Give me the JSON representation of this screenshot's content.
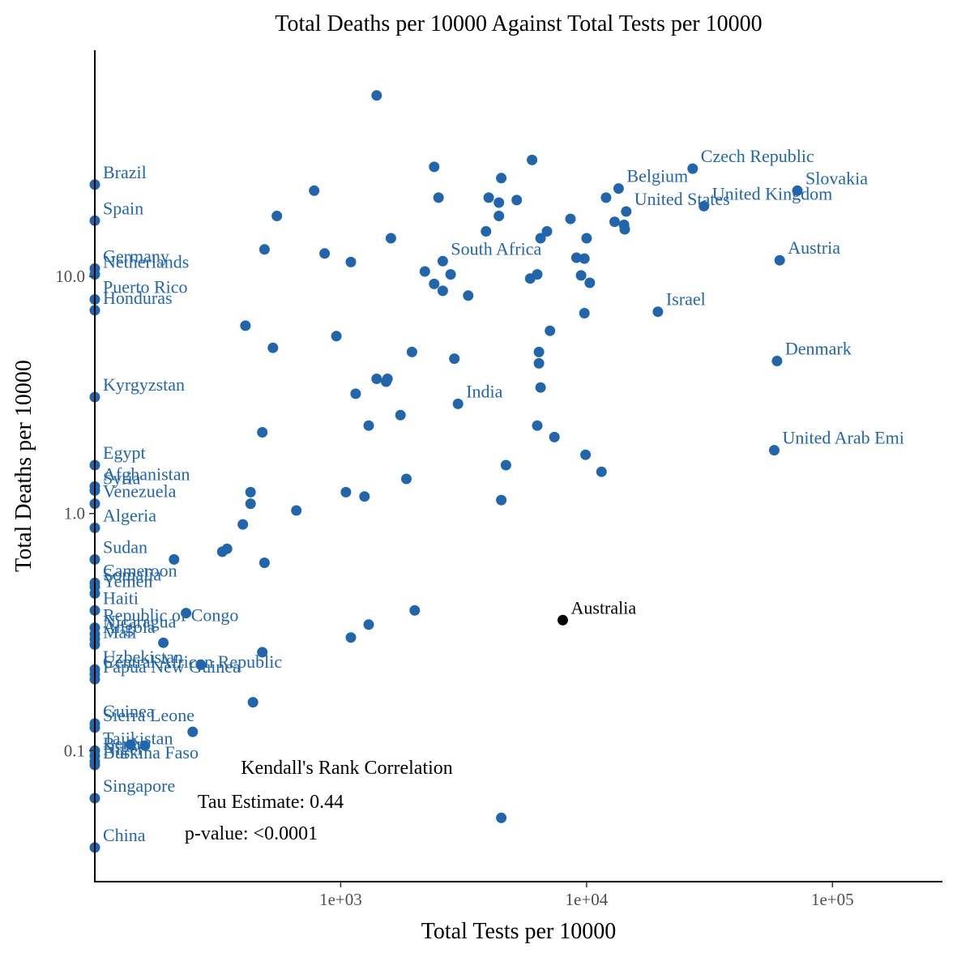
{
  "chart_data": {
    "type": "scatter",
    "title": "Total Deaths per 10000 Against Total Tests per 10000",
    "xlabel": "Total Tests per 10000",
    "ylabel": "Total Deaths per 10000",
    "x_scale": "log10",
    "y_scale": "log10",
    "xlim": [
      100,
      280000
    ],
    "ylim": [
      0.028,
      90
    ],
    "x_ticks": [
      {
        "value": 1000,
        "label": "1e+03"
      },
      {
        "value": 10000,
        "label": "1e+04"
      },
      {
        "value": 100000,
        "label": "1e+05"
      }
    ],
    "y_ticks": [
      {
        "value": 0.1,
        "label": "0.1"
      },
      {
        "value": 1,
        "label": "1.0"
      },
      {
        "value": 10,
        "label": "10.0"
      }
    ],
    "grid": false,
    "legend": "none",
    "colors": {
      "points": "#2166ac",
      "highlight": "#000000"
    },
    "labeled_points": [
      {
        "name": "Brazil",
        "x": 100,
        "y": 24.4
      },
      {
        "name": "Spain",
        "x": 100,
        "y": 17.2
      },
      {
        "name": "Germany",
        "x": 100,
        "y": 10.8
      },
      {
        "name": "Netherlands",
        "x": 100,
        "y": 10.2
      },
      {
        "name": "Puerto Rico",
        "x": 100,
        "y": 8.0
      },
      {
        "name": "Honduras",
        "x": 100,
        "y": 7.2
      },
      {
        "name": "Kyrgyzstan",
        "x": 100,
        "y": 3.1
      },
      {
        "name": "Egypt",
        "x": 100,
        "y": 1.6
      },
      {
        "name": "Afghanistan",
        "x": 100,
        "y": 1.3
      },
      {
        "name": "Syria",
        "x": 100,
        "y": 1.25
      },
      {
        "name": "Venezuela",
        "x": 100,
        "y": 1.1
      },
      {
        "name": "Algeria",
        "x": 100,
        "y": 0.87
      },
      {
        "name": "Sudan",
        "x": 100,
        "y": 0.64
      },
      {
        "name": "Cameroon",
        "x": 100,
        "y": 0.51
      },
      {
        "name": "Somalia",
        "x": 100,
        "y": 0.49
      },
      {
        "name": "Yemen",
        "x": 100,
        "y": 0.46
      },
      {
        "name": "Haiti",
        "x": 100,
        "y": 0.39
      },
      {
        "name": "Republic of Congo",
        "x": 100,
        "y": 0.33
      },
      {
        "name": "Nicaragua",
        "x": 100,
        "y": 0.31
      },
      {
        "name": "Angola",
        "x": 100,
        "y": 0.295
      },
      {
        "name": "Mali",
        "x": 100,
        "y": 0.28
      },
      {
        "name": "Uzbekistan",
        "x": 100,
        "y": 0.22
      },
      {
        "name": "Central African Republic",
        "x": 100,
        "y": 0.21
      },
      {
        "name": "Papua New Guinea",
        "x": 100,
        "y": 0.2
      },
      {
        "name": "Guinea",
        "x": 100,
        "y": 0.13
      },
      {
        "name": "Sierra Leone",
        "x": 100,
        "y": 0.125
      },
      {
        "name": "Tajikistan",
        "x": 100,
        "y": 0.1
      },
      {
        "name": "Benin",
        "x": 100,
        "y": 0.095
      },
      {
        "name": "Niger",
        "x": 100,
        "y": 0.09
      },
      {
        "name": "Burkina Faso",
        "x": 100,
        "y": 0.087
      },
      {
        "name": "Singapore",
        "x": 100,
        "y": 0.063
      },
      {
        "name": "China",
        "x": 100,
        "y": 0.039
      },
      {
        "name": "Czech Republic",
        "x": 27000,
        "y": 28.5
      },
      {
        "name": "Belgium",
        "x": 13500,
        "y": 23.5
      },
      {
        "name": "Slovakia",
        "x": 72000,
        "y": 23.0
      },
      {
        "name": "United Kingdom",
        "x": 30000,
        "y": 19.8
      },
      {
        "name": "United States",
        "x": 14500,
        "y": 18.8
      },
      {
        "name": "Austria",
        "x": 61000,
        "y": 11.7
      },
      {
        "name": "South Africa",
        "x": 2600,
        "y": 11.6
      },
      {
        "name": "Israel",
        "x": 19500,
        "y": 7.1
      },
      {
        "name": "Denmark",
        "x": 59500,
        "y": 4.4
      },
      {
        "name": "India",
        "x": 3000,
        "y": 2.9
      },
      {
        "name": "United Arab Emi",
        "x": 58000,
        "y": 1.85
      },
      {
        "name": "Australia",
        "x": 8000,
        "y": 0.355,
        "highlight": true
      }
    ],
    "other_points": [
      [
        1400,
        58
      ],
      [
        2400,
        29
      ],
      [
        6000,
        31
      ],
      [
        4500,
        26
      ],
      [
        2500,
        21.5
      ],
      [
        4000,
        21.5
      ],
      [
        4400,
        20.5
      ],
      [
        5200,
        21
      ],
      [
        12000,
        21.5
      ],
      [
        780,
        23
      ],
      [
        550,
        18
      ],
      [
        4400,
        18
      ],
      [
        1600,
        14.5
      ],
      [
        3900,
        15.5
      ],
      [
        6500,
        14.5
      ],
      [
        6900,
        15.5
      ],
      [
        8600,
        17.5
      ],
      [
        13000,
        17
      ],
      [
        14200,
        16.5
      ],
      [
        14300,
        15.8
      ],
      [
        10000,
        14.5
      ],
      [
        490,
        13
      ],
      [
        860,
        12.5
      ],
      [
        1100,
        11.5
      ],
      [
        2200,
        10.5
      ],
      [
        2800,
        10.2
      ],
      [
        9100,
        12
      ],
      [
        9800,
        11.9
      ],
      [
        6300,
        10.2
      ],
      [
        5900,
        9.8
      ],
      [
        2400,
        9.3
      ],
      [
        2600,
        8.7
      ],
      [
        3300,
        8.3
      ],
      [
        9500,
        10.1
      ],
      [
        10300,
        9.4
      ],
      [
        9800,
        7.0
      ],
      [
        410,
        6.2
      ],
      [
        7100,
        5.9
      ],
      [
        960,
        5.6
      ],
      [
        530,
        5.0
      ],
      [
        1950,
        4.8
      ],
      [
        6400,
        4.8
      ],
      [
        6400,
        4.3
      ],
      [
        2900,
        4.5
      ],
      [
        1400,
        3.7
      ],
      [
        1550,
        3.7
      ],
      [
        1530,
        3.6
      ],
      [
        6500,
        3.4
      ],
      [
        1150,
        3.2
      ],
      [
        1750,
        2.6
      ],
      [
        6300,
        2.35
      ],
      [
        7400,
        2.1
      ],
      [
        480,
        2.2
      ],
      [
        1300,
        2.35
      ],
      [
        9900,
        1.77
      ],
      [
        4700,
        1.6
      ],
      [
        11500,
        1.5
      ],
      [
        1850,
        1.4
      ],
      [
        430,
        1.23
      ],
      [
        1050,
        1.23
      ],
      [
        1250,
        1.18
      ],
      [
        4500,
        1.14
      ],
      [
        430,
        1.1
      ],
      [
        660,
        1.03
      ],
      [
        400,
        0.9
      ],
      [
        210,
        0.64
      ],
      [
        345,
        0.71
      ],
      [
        330,
        0.69
      ],
      [
        490,
        0.62
      ],
      [
        235,
        0.38
      ],
      [
        1300,
        0.34
      ],
      [
        2000,
        0.39
      ],
      [
        1100,
        0.3
      ],
      [
        190,
        0.285
      ],
      [
        270,
        0.23
      ],
      [
        480,
        0.26
      ],
      [
        440,
        0.16
      ],
      [
        250,
        0.12
      ],
      [
        140,
        0.106
      ],
      [
        160,
        0.105
      ],
      [
        4500,
        0.052
      ]
    ],
    "annotations": [
      "Kendall's Rank Correlation",
      "Tau Estimate: 0.44",
      "p-value: <0.0001"
    ]
  }
}
